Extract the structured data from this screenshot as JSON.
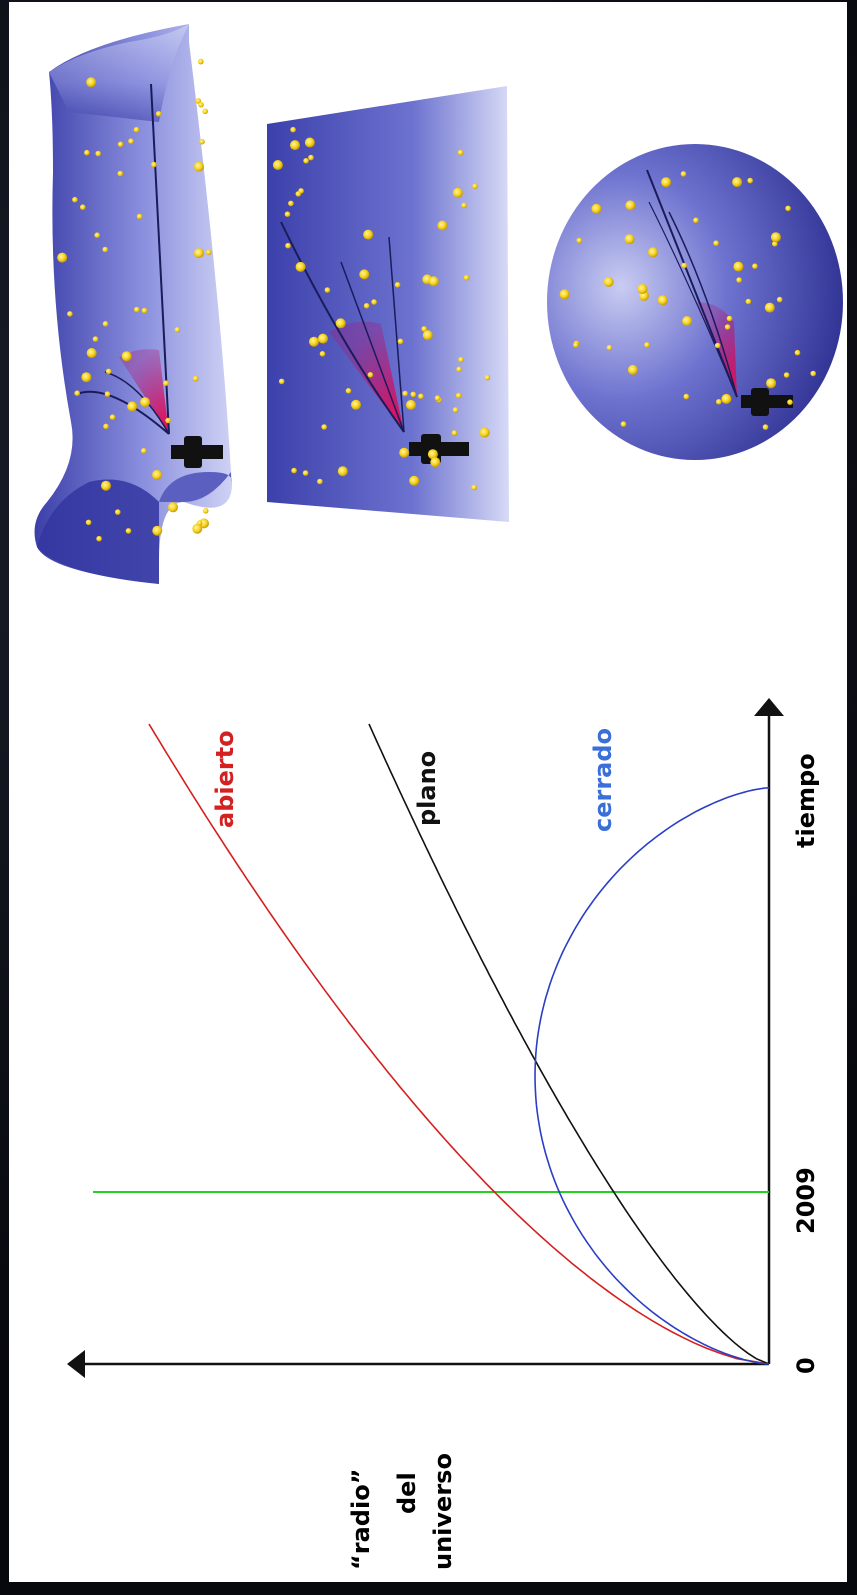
{
  "labels": {
    "radio": "“radio”",
    "del": "del",
    "universo": "universo",
    "tiempo": "tiempo",
    "zero": "0",
    "year": "2009",
    "abierto": "abierto",
    "plano": "plano",
    "cerrado": "cerrado"
  },
  "colors": {
    "abierto": "#d42020",
    "plano": "#111111",
    "cerrado": "#2a3fc4",
    "year_line": "#22d022",
    "cerrado_label": "#3a6ed8"
  },
  "surfaces": [
    {
      "name": "open-universe-saddle-surface",
      "geometry": "saddle"
    },
    {
      "name": "flat-universe-plane-surface",
      "geometry": "flat"
    },
    {
      "name": "closed-universe-sphere-surface",
      "geometry": "sphere"
    }
  ]
}
